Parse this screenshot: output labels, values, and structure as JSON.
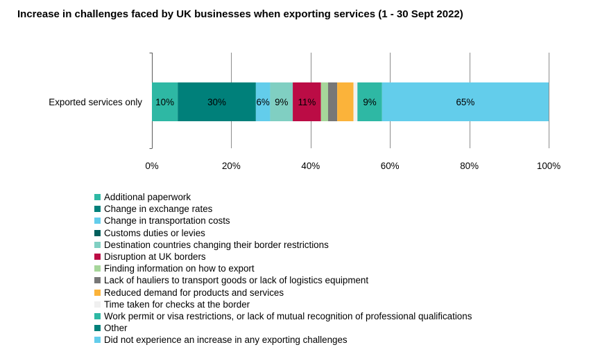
{
  "chart_data": {
    "type": "bar",
    "orientation": "horizontal",
    "stacked": true,
    "title": "Increase in challenges faced by UK businesses when exporting services (1 - 30 Sept 2022)",
    "categories": [
      "Exported services only"
    ],
    "xlim": [
      0,
      100
    ],
    "x_ticks": [
      "0%",
      "20%",
      "40%",
      "60%",
      "80%",
      "100%"
    ],
    "x_tick_values": [
      0,
      20,
      40,
      60,
      80,
      100
    ],
    "grid": "vertical",
    "legend_position": "bottom",
    "series": [
      {
        "name": "Additional paperwork",
        "color": "#2EB8A4",
        "start": 0,
        "end": 6.5,
        "label": "10%"
      },
      {
        "name": "Change in exchange rates",
        "color": "#00807A",
        "start": 6.5,
        "end": 26.2,
        "label": "30%"
      },
      {
        "name": "Change in transportation costs",
        "color": "#63CDEB",
        "start": 26.2,
        "end": 29.8,
        "label": "6%"
      },
      {
        "name": "Customs duties or levies",
        "color": "#005F5C",
        "start": 29.8,
        "end": 29.8,
        "label": ""
      },
      {
        "name": "Destination countries changing their border restrictions",
        "color": "#80CFC2",
        "start": 29.8,
        "end": 35.5,
        "label": "9%"
      },
      {
        "name": "Disruption at UK borders",
        "color": "#BB0C45",
        "start": 35.5,
        "end": 42.6,
        "label": "11%"
      },
      {
        "name": "Finding information on how to export",
        "color": "#A6D69A",
        "start": 42.6,
        "end": 44.4,
        "label": ""
      },
      {
        "name": "Lack of hauliers to transport goods or lack of logistics equipment",
        "color": "#777777",
        "start": 44.4,
        "end": 46.7,
        "label": ""
      },
      {
        "name": "Reduced demand for products and services",
        "color": "#FBB33A",
        "start": 46.7,
        "end": 50.8,
        "label": ""
      },
      {
        "name": "Time taken for checks at the border",
        "color": "#F0F0F0",
        "start": 50.8,
        "end": 51.8,
        "label": ""
      },
      {
        "name": "Work permit or visa restrictions, or lack of mutual recognition of professional qualifications",
        "color": "#2EB8A4",
        "start": 51.8,
        "end": 58.0,
        "label": "9%"
      },
      {
        "name": "Other",
        "color": "#00807A",
        "start": 58.0,
        "end": 58.0,
        "label": ""
      },
      {
        "name": "Did not experience an increase in any exporting challenges",
        "color": "#63CDEB",
        "start": 58.0,
        "end": 100,
        "label": "65%"
      }
    ]
  }
}
